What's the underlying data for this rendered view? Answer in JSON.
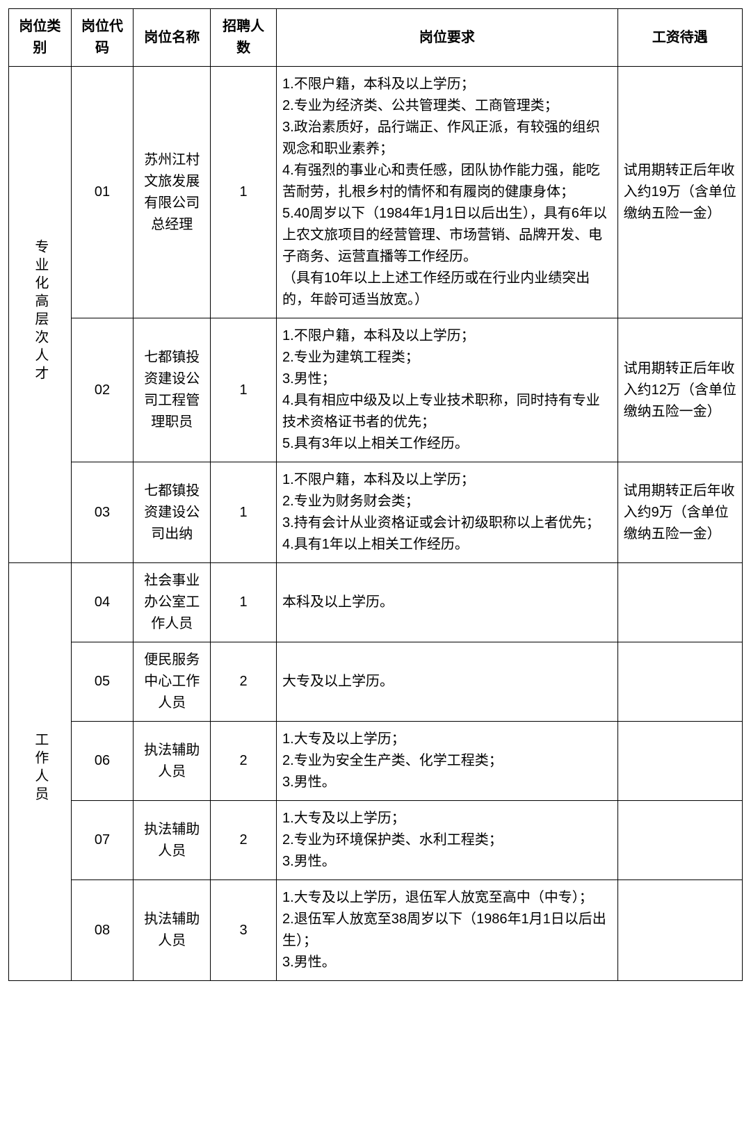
{
  "headers": {
    "category": "岗位类别",
    "code": "岗位代码",
    "name": "岗位名称",
    "count": "招聘人数",
    "requirements": "岗位要求",
    "salary": "工资待遇"
  },
  "groups": [
    {
      "category": "专业化高层次人才",
      "rows": [
        {
          "code": "01",
          "name": "苏州江村文旅发展有限公司总经理",
          "count": "1",
          "requirements": "1.不限户籍，本科及以上学历；\n2.专业为经济类、公共管理类、工商管理类；\n3.政治素质好，品行端正、作风正派，有较强的组织观念和职业素养；\n4.有强烈的事业心和责任感，团队协作能力强，能吃苦耐劳，扎根乡村的情怀和有履岗的健康身体；\n5.40周岁以下（1984年1月1日以后出生），具有6年以上农文旅项目的经营管理、市场营销、品牌开发、电子商务、运营直播等工作经历。\n（具有10年以上上述工作经历或在行业内业绩突出的，年龄可适当放宽。）",
          "salary": "试用期转正后年收入约19万（含单位缴纳五险一金）"
        },
        {
          "code": "02",
          "name": "七都镇投资建设公司工程管理职员",
          "count": "1",
          "requirements": "1.不限户籍，本科及以上学历；\n2.专业为建筑工程类；\n3.男性；\n4.具有相应中级及以上专业技术职称，同时持有专业技术资格证书者的优先；\n5.具有3年以上相关工作经历。",
          "salary": "试用期转正后年收入约12万（含单位缴纳五险一金）"
        },
        {
          "code": "03",
          "name": "七都镇投资建设公司出纳",
          "count": "1",
          "requirements": "1.不限户籍，本科及以上学历；\n2.专业为财务财会类；\n3.持有会计从业资格证或会计初级职称以上者优先；\n4.具有1年以上相关工作经历。",
          "salary": "试用期转正后年收入约9万（含单位缴纳五险一金）"
        }
      ]
    },
    {
      "category": "工作人员",
      "rows": [
        {
          "code": "04",
          "name": "社会事业办公室工作人员",
          "count": "1",
          "requirements": "本科及以上学历。",
          "salary": ""
        },
        {
          "code": "05",
          "name": "便民服务中心工作人员",
          "count": "2",
          "requirements": "大专及以上学历。",
          "salary": ""
        },
        {
          "code": "06",
          "name": "执法辅助人员",
          "count": "2",
          "requirements": "1.大专及以上学历；\n2.专业为安全生产类、化学工程类；\n3.男性。",
          "salary": ""
        },
        {
          "code": "07",
          "name": "执法辅助人员",
          "count": "2",
          "requirements": "1.大专及以上学历；\n2.专业为环境保护类、水利工程类；\n3.男性。",
          "salary": ""
        },
        {
          "code": "08",
          "name": "执法辅助人员",
          "count": "3",
          "requirements": "1.大专及以上学历，退伍军人放宽至高中（中专）；\n2.退伍军人放宽至38周岁以下（1986年1月1日以后出生）；\n3.男性。",
          "salary": ""
        }
      ]
    }
  ]
}
